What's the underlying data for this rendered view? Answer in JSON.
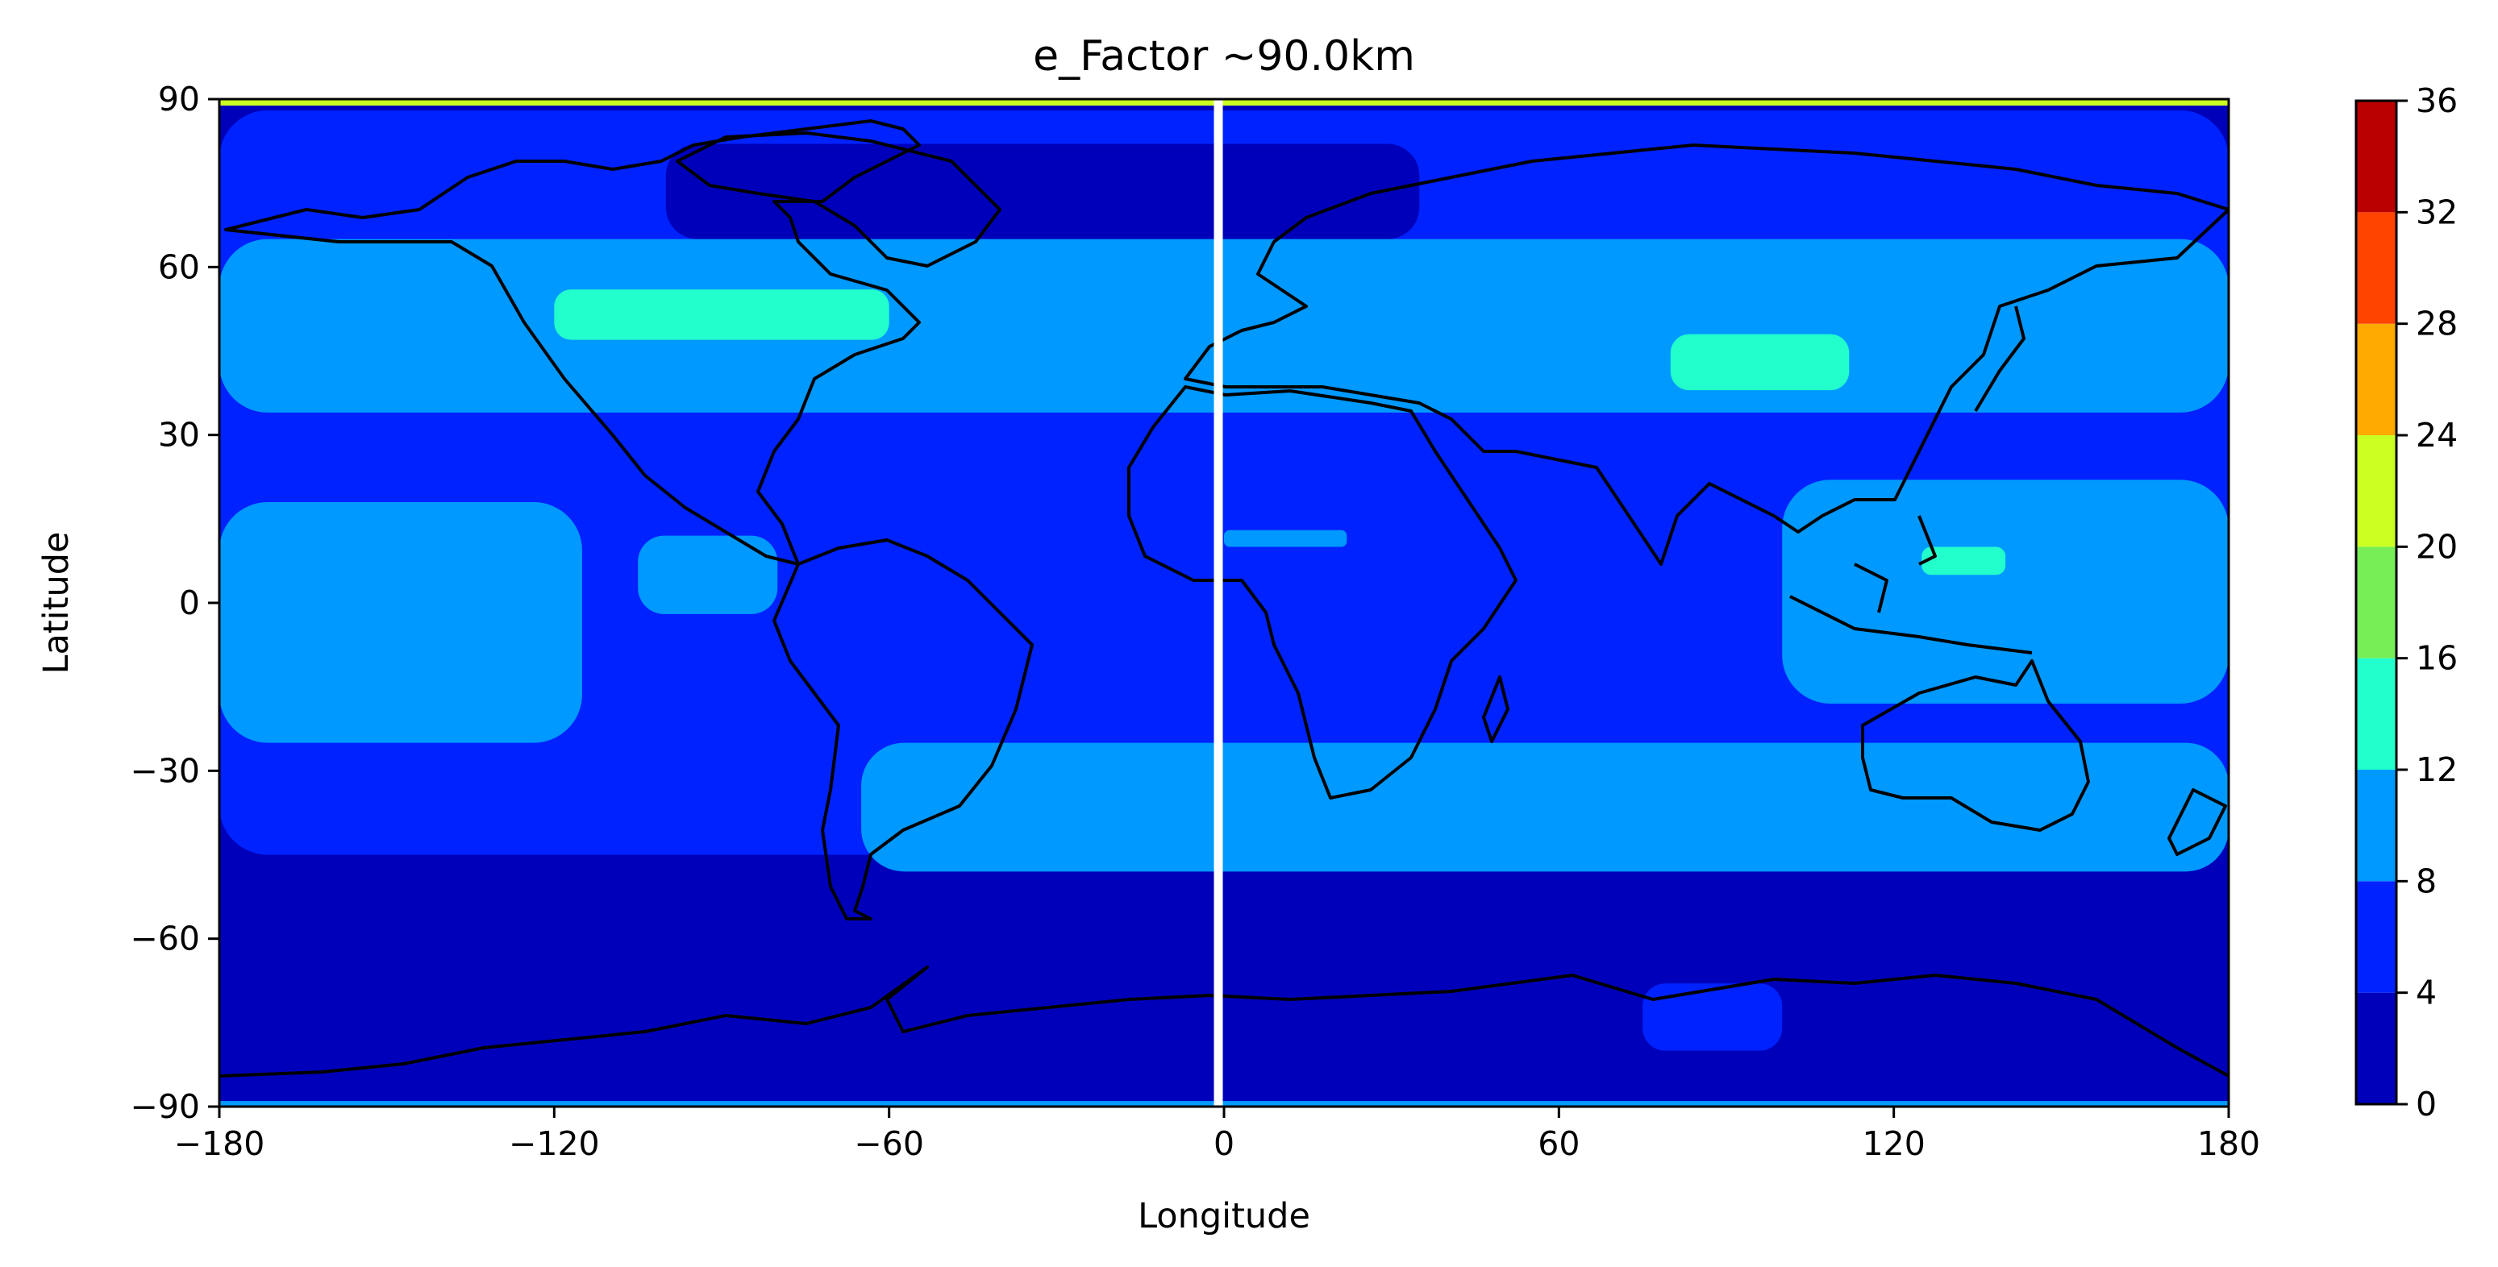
{
  "chart_data": {
    "type": "heatmap",
    "title": "e_Factor ~90.0km",
    "xlabel": "Longitude",
    "ylabel": "Latitude",
    "xlim": [
      -180,
      180
    ],
    "ylim": [
      -90,
      90
    ],
    "xticks": [
      -180,
      -120,
      -60,
      0,
      60,
      120,
      180
    ],
    "yticks": [
      -90,
      -60,
      -30,
      0,
      30,
      60,
      90
    ],
    "xtick_labels": [
      "−180",
      "−120",
      "−60",
      "0",
      "60",
      "120",
      "180"
    ],
    "ytick_labels": [
      "−90",
      "−60",
      "−30",
      "0",
      "30",
      "60",
      "90"
    ],
    "colorbar": {
      "levels": [
        0,
        4,
        8,
        12,
        16,
        20,
        24,
        28,
        32,
        36
      ],
      "tick_labels": [
        "0",
        "4",
        "8",
        "12",
        "16",
        "20",
        "24",
        "28",
        "32",
        "36"
      ],
      "colors": [
        "#0000bb",
        "#0022ff",
        "#0099ff",
        "#22ffcc",
        "#77ee55",
        "#ccff22",
        "#ffaa00",
        "#ff4400",
        "#bb0000"
      ]
    },
    "grid": false,
    "overlays": [
      "coastlines",
      "white vertical line near longitude 0"
    ],
    "regions": [
      {
        "level": 1,
        "lon": [
          -180,
          180
        ],
        "lat": [
          -45,
          88
        ]
      },
      {
        "level": 0,
        "lon": [
          -180,
          180
        ],
        "lat": [
          -88,
          -45
        ]
      },
      {
        "level": 0,
        "lon": [
          -100,
          35
        ],
        "lat": [
          65,
          82
        ]
      },
      {
        "level": 2,
        "lon": [
          -180,
          180
        ],
        "lat": [
          34,
          65
        ]
      },
      {
        "level": 3,
        "lon": [
          -120,
          -60
        ],
        "lat": [
          47,
          56
        ]
      },
      {
        "level": 3,
        "lon": [
          80,
          112
        ],
        "lat": [
          38,
          48
        ]
      },
      {
        "level": 2,
        "lon": [
          -180,
          -115
        ],
        "lat": [
          -25,
          18
        ]
      },
      {
        "level": 2,
        "lon": [
          -105,
          -80
        ],
        "lat": [
          -2,
          12
        ]
      },
      {
        "level": 2,
        "lon": [
          100,
          180
        ],
        "lat": [
          -18,
          22
        ]
      },
      {
        "level": 3,
        "lon": [
          125,
          140
        ],
        "lat": [
          5,
          10
        ]
      },
      {
        "level": 2,
        "lon": [
          0,
          22
        ],
        "lat": [
          10,
          13
        ]
      },
      {
        "level": 2,
        "lon": [
          -65,
          180
        ],
        "lat": [
          -48,
          -25
        ]
      },
      {
        "level": 1,
        "lon": [
          75,
          100
        ],
        "lat": [
          -80,
          -68
        ]
      }
    ]
  }
}
